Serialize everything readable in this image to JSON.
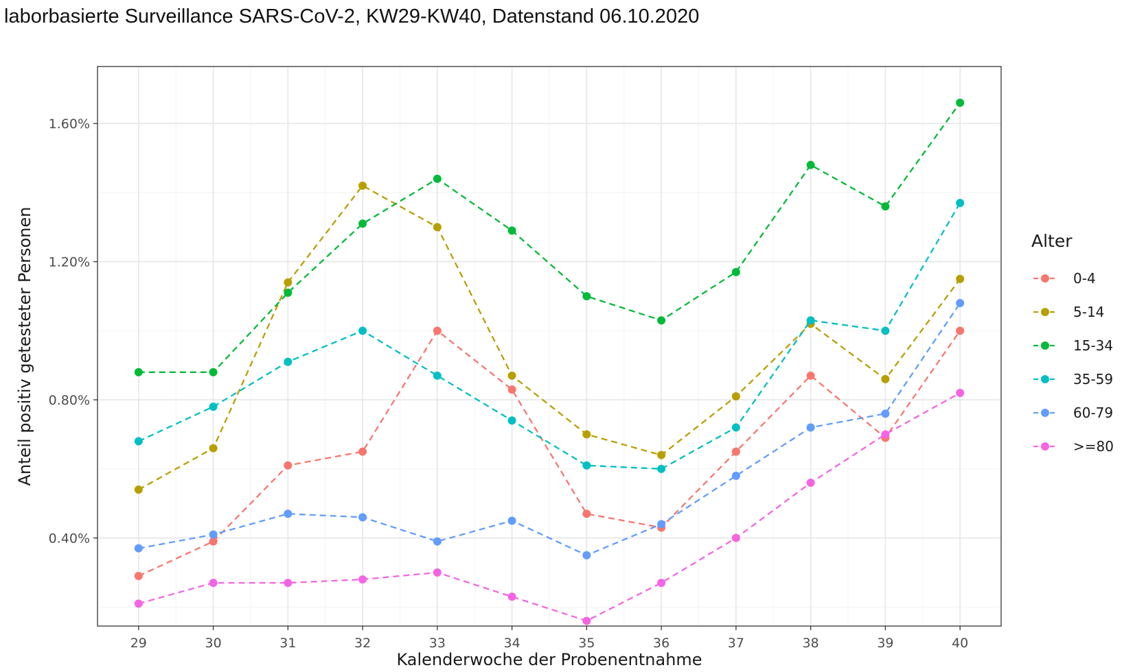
{
  "title": "laborbasierte Surveillance SARS-CoV-2, KW29-KW40, Datenstand 06.10.2020",
  "chart_data": {
    "type": "line",
    "title": "laborbasierte Surveillance SARS-CoV-2, KW29-KW40, Datenstand 06.10.2020",
    "xlabel": "Kalenderwoche der Probenentnahme",
    "ylabel": "Anteil positiv getesteter Personen",
    "x": [
      29,
      30,
      31,
      32,
      33,
      34,
      35,
      36,
      37,
      38,
      39,
      40
    ],
    "x_tick_labels": [
      "29",
      "30",
      "31",
      "32",
      "33",
      "34",
      "35",
      "36",
      "37",
      "38",
      "39",
      "40"
    ],
    "xlim": [
      28.45,
      40.55
    ],
    "y_ticks": [
      0.004,
      0.008,
      0.012,
      0.016
    ],
    "y_tick_labels": [
      "0.40%",
      "0.80%",
      "1.20%",
      "1.60%"
    ],
    "ylim": [
      0.00145,
      0.01765
    ],
    "grid": true,
    "line_style": "dashed",
    "legend": {
      "title": "Alter",
      "position": "right"
    },
    "series": [
      {
        "name": "0-4",
        "color": "#F8766D",
        "values": [
          0.0029,
          0.0039,
          0.0061,
          0.0065,
          0.01,
          0.0083,
          0.0047,
          0.0043,
          0.0065,
          0.0087,
          0.0069,
          0.01
        ]
      },
      {
        "name": "5-14",
        "color": "#B79F00",
        "values": [
          0.0054,
          0.0066,
          0.0114,
          0.0142,
          0.013,
          0.0087,
          0.007,
          0.0064,
          0.0081,
          0.0102,
          0.0086,
          0.0115
        ]
      },
      {
        "name": "15-34",
        "color": "#00BA38",
        "values": [
          0.0088,
          0.0088,
          0.0111,
          0.0131,
          0.0144,
          0.0129,
          0.011,
          0.0103,
          0.0117,
          0.0148,
          0.0136,
          0.0166
        ]
      },
      {
        "name": "35-59",
        "color": "#00BFC4",
        "values": [
          0.0068,
          0.0078,
          0.0091,
          0.01,
          0.0087,
          0.0074,
          0.0061,
          0.006,
          0.0072,
          0.0103,
          0.01,
          0.0137
        ]
      },
      {
        "name": "60-79",
        "color": "#619CFF",
        "values": [
          0.0037,
          0.0041,
          0.0047,
          0.0046,
          0.0039,
          0.0045,
          0.0035,
          0.0044,
          0.0058,
          0.0072,
          0.0076,
          0.0108
        ]
      },
      {
        "name": ">=80",
        "color": "#F564E3",
        "values": [
          0.0021,
          0.0027,
          0.0027,
          0.0028,
          0.003,
          0.0023,
          0.0016,
          0.0027,
          0.004,
          0.0056,
          0.007,
          0.0082
        ]
      }
    ]
  }
}
